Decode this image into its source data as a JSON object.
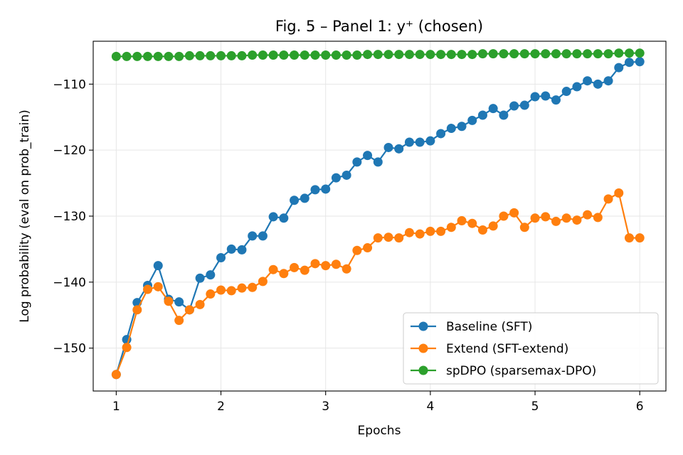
{
  "chart_data": {
    "type": "line",
    "title": "Fig. 5 – Panel 1: y⁺ (chosen)",
    "xlabel": "Epochs",
    "ylabel": "Log probability (eval on prob_train)",
    "xlim": [
      0.78,
      6.25
    ],
    "ylim": [
      -156.5,
      -103.5
    ],
    "xticks": [
      1,
      2,
      3,
      4,
      5,
      6
    ],
    "xtick_labels": [
      "1",
      "2",
      "3",
      "4",
      "5",
      "6"
    ],
    "yticks": [
      -150,
      -140,
      -130,
      -120,
      -110
    ],
    "ytick_labels": [
      "−150",
      "−140",
      "−130",
      "−120",
      "−110"
    ],
    "grid": true,
    "legend_position": "lower-right",
    "x": [
      1.0,
      1.1,
      1.2,
      1.3,
      1.4,
      1.5,
      1.6,
      1.7,
      1.8,
      1.9,
      2.0,
      2.1,
      2.2,
      2.3,
      2.4,
      2.5,
      2.6,
      2.7,
      2.8,
      2.9,
      3.0,
      3.1,
      3.2,
      3.3,
      3.4,
      3.5,
      3.6,
      3.7,
      3.8,
      3.9,
      4.0,
      4.1,
      4.2,
      4.3,
      4.4,
      4.5,
      4.6,
      4.7,
      4.8,
      4.9,
      5.0,
      5.1,
      5.2,
      5.3,
      5.4,
      5.5,
      5.6,
      5.7,
      5.8,
      5.9,
      6.0
    ],
    "series": [
      {
        "name": "Baseline (SFT)",
        "color": "#1f77b4",
        "values": [
          -154.0,
          -148.7,
          -143.1,
          -140.5,
          -137.5,
          -142.6,
          -143.0,
          -144.2,
          -139.4,
          -138.9,
          -136.3,
          -135.0,
          -135.1,
          -133.0,
          -133.0,
          -130.1,
          -130.3,
          -127.6,
          -127.3,
          -126.0,
          -125.9,
          -124.2,
          -123.8,
          -121.8,
          -120.8,
          -121.8,
          -119.6,
          -119.8,
          -118.8,
          -118.8,
          -118.6,
          -117.5,
          -116.7,
          -116.4,
          -115.5,
          -114.7,
          -113.7,
          -114.7,
          -113.3,
          -113.2,
          -111.9,
          -111.8,
          -112.4,
          -111.1,
          -110.4,
          -109.5,
          -110.0,
          -109.5,
          -107.5,
          -106.7,
          -106.6
        ]
      },
      {
        "name": "Extend (SFT-extend)",
        "color": "#ff7f0e",
        "values": [
          -154.0,
          -149.9,
          -144.2,
          -141.1,
          -140.7,
          -142.9,
          -145.8,
          -144.2,
          -143.4,
          -141.8,
          -141.2,
          -141.3,
          -140.9,
          -140.8,
          -139.9,
          -138.1,
          -138.7,
          -137.8,
          -138.2,
          -137.2,
          -137.5,
          -137.3,
          -138.0,
          -135.2,
          -134.8,
          -133.3,
          -133.2,
          -133.3,
          -132.5,
          -132.7,
          -132.3,
          -132.3,
          -131.7,
          -130.7,
          -131.1,
          -132.1,
          -131.5,
          -130.0,
          -129.5,
          -131.7,
          -130.3,
          -130.1,
          -130.8,
          -130.3,
          -130.6,
          -129.8,
          -130.2,
          -127.4,
          -126.5,
          -133.3,
          -133.3
        ]
      },
      {
        "name": "spDPO (sparsemax-DPO)",
        "color": "#2ca02c",
        "values": [
          -105.8,
          -105.8,
          -105.8,
          -105.8,
          -105.8,
          -105.8,
          -105.8,
          -105.7,
          -105.7,
          -105.7,
          -105.7,
          -105.7,
          -105.7,
          -105.6,
          -105.6,
          -105.6,
          -105.6,
          -105.6,
          -105.6,
          -105.6,
          -105.6,
          -105.6,
          -105.6,
          -105.6,
          -105.5,
          -105.5,
          -105.5,
          -105.5,
          -105.5,
          -105.5,
          -105.5,
          -105.5,
          -105.5,
          -105.5,
          -105.5,
          -105.4,
          -105.4,
          -105.4,
          -105.4,
          -105.4,
          -105.4,
          -105.4,
          -105.4,
          -105.4,
          -105.4,
          -105.4,
          -105.4,
          -105.4,
          -105.3,
          -105.3,
          -105.3
        ]
      }
    ]
  }
}
